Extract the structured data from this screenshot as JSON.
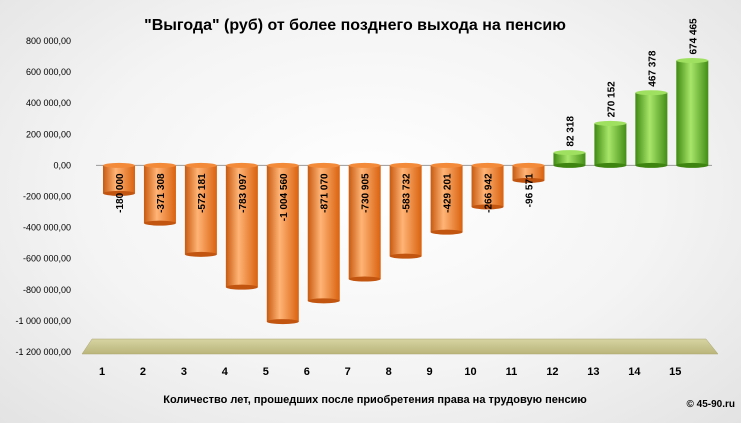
{
  "chart_data": {
    "type": "bar",
    "title": "\"Выгода\"  (руб) от более позднего  выхода на пенсию",
    "xlabel": "Количество лет, прошедших после приобретения права на трудовую пенсию",
    "ylabel": "",
    "ylim": [
      -1200000,
      800000
    ],
    "yticks": [
      800000,
      600000,
      400000,
      200000,
      0,
      -200000,
      -400000,
      -600000,
      -800000,
      -1000000,
      -1200000
    ],
    "ytick_labels": [
      "800 000,00",
      "600 000,00",
      "400 000,00",
      "200 000,00",
      "0,00",
      "-200 000,00",
      "-400 000,00",
      "-600 000,00",
      "-800 000,00",
      "-1 000 000,00",
      "-1 200 000,00"
    ],
    "categories": [
      "1",
      "2",
      "3",
      "4",
      "5",
      "6",
      "7",
      "8",
      "9",
      "10",
      "11",
      "12",
      "13",
      "14",
      "15"
    ],
    "values": [
      -180000,
      -371308,
      -572181,
      -783097,
      -1004560,
      -871070,
      -730905,
      -583732,
      -429201,
      -266942,
      -96571,
      82318,
      270152,
      467378,
      674465
    ],
    "data_labels": [
      "-180 000",
      "-371 308",
      "-572 181",
      "-783 097",
      "-1 004 560",
      "-871 070",
      "-730 905",
      "-583 732",
      "-429 201",
      "-266 942",
      "-96 571",
      "82 318",
      "270 152",
      "467 378",
      "674 465"
    ],
    "colors": {
      "negative": "#e8741e",
      "negative_light": "#ffb476",
      "positive": "#4e9a1c",
      "positive_light": "#9fe060",
      "floor": "#c9c58c"
    },
    "grid": false,
    "legend": "none"
  },
  "copyright": "© 45-90.ru"
}
